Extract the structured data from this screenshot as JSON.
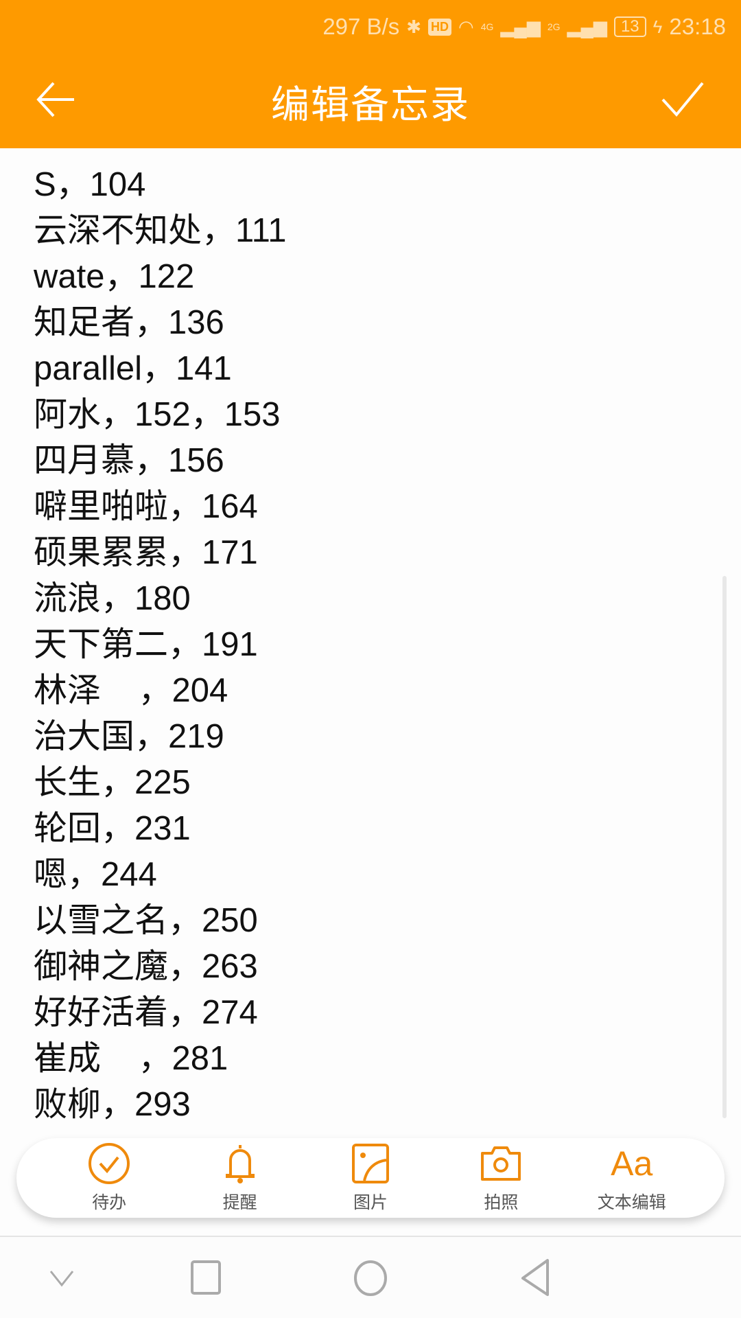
{
  "status_bar": {
    "net_speed": "297 B/s",
    "net1": "4G",
    "net2": "2G",
    "battery": "13",
    "time": "23:18"
  },
  "header": {
    "title": "编辑备忘录"
  },
  "lines": [
    "S，104",
    "云深不知处，111",
    "wate，122",
    "知足者，136",
    "parallel，141",
    "阿水，152，153",
    "四月慕，156",
    "噼里啪啦，164",
    "硕果累累，171",
    "流浪，180",
    "天下第二，191",
    "林泽    ，204",
    "治大国，219",
    "长生，225",
    "轮回，231",
    "嗯，244",
    "以雪之名，250",
    "御神之魔，263",
    "好好活着，274",
    "崔成    ，281",
    "败柳，293"
  ],
  "toolbar": [
    {
      "label": "待办",
      "icon": "todo-check-icon"
    },
    {
      "label": "提醒",
      "icon": "bell-icon"
    },
    {
      "label": "图片",
      "icon": "image-icon"
    },
    {
      "label": "拍照",
      "icon": "camera-icon"
    },
    {
      "label": "文本编辑",
      "icon": "text-format-icon",
      "glyph": "Aa"
    }
  ],
  "colors": {
    "accent": "#fe9a00",
    "icon": "#ef8a0c"
  }
}
